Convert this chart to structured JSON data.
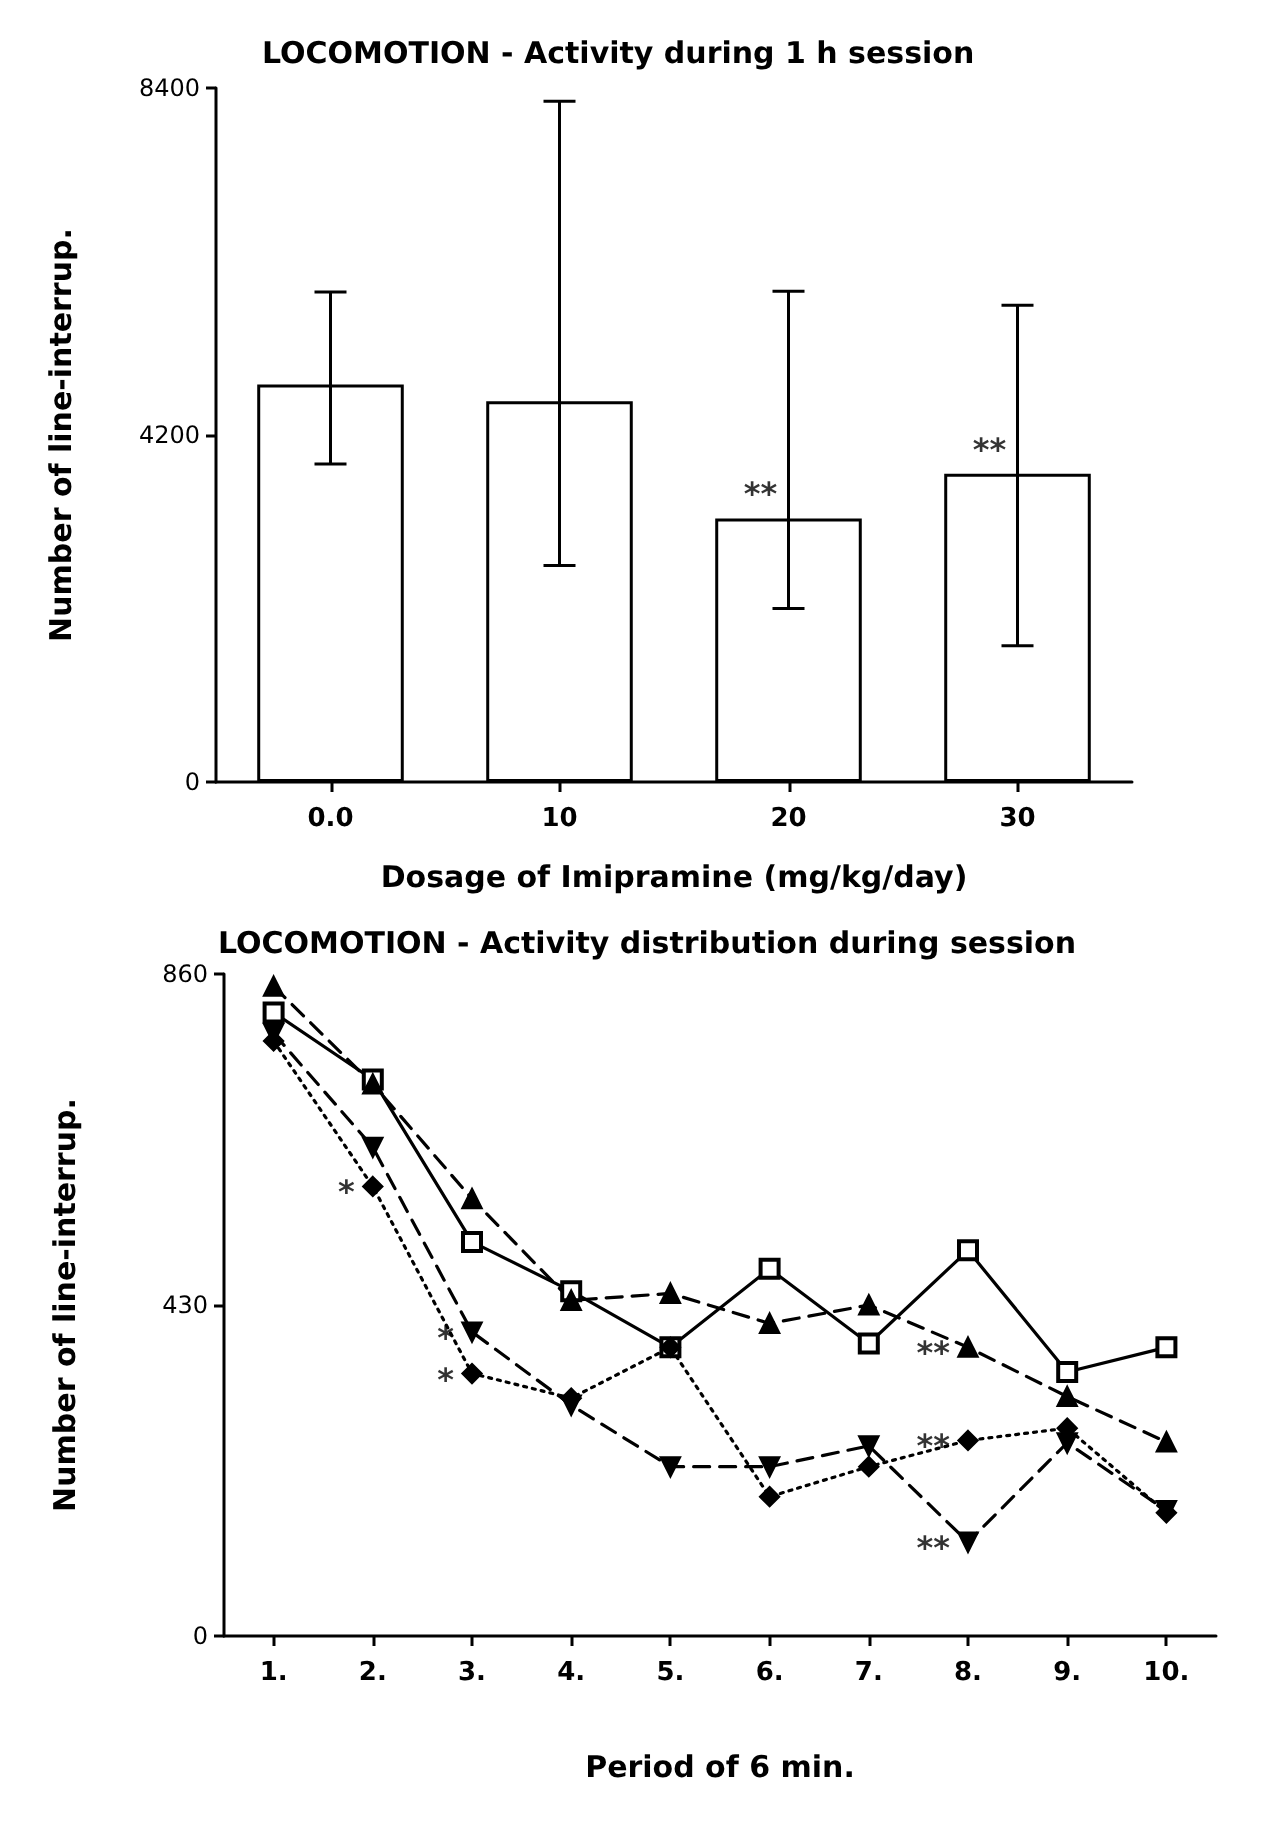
{
  "chart_data": [
    {
      "type": "bar",
      "title": "LOCOMOTION - Activity during 1 h session",
      "xlabel": "Dosage of Imipramine (mg/kg/day)",
      "ylabel": "Number of line-interrup.",
      "categories": [
        "0.0",
        "10",
        "20",
        "30"
      ],
      "values": [
        4810,
        4610,
        3190,
        3730
      ],
      "color": "#ffffff",
      "errors": [
        [
          3850,
          5930
        ],
        [
          2620,
          8240
        ],
        [
          2100,
          5940
        ],
        [
          1650,
          5770
        ]
      ],
      "ylim": [
        0,
        8400
      ],
      "yticks": [
        0,
        4200,
        8400
      ],
      "grid": false,
      "annotations": [
        {
          "text": "**",
          "x": "20",
          "y": 3190
        },
        {
          "text": "**",
          "x": "30",
          "y": 3730
        }
      ]
    },
    {
      "type": "line",
      "title": "LOCOMOTION - Activity distribution during session",
      "xlabel": "Period of 6 min.",
      "ylabel": "Number of line-interrup.",
      "categories": [
        "1.",
        "2.",
        "3.",
        "4.",
        "5.",
        "6.",
        "7.",
        "8.",
        "9.",
        "10."
      ],
      "ylim": [
        0,
        860
      ],
      "yticks": [
        0,
        430,
        860
      ],
      "grid": false,
      "series": [
        {
          "color": "#000000",
          "marker": "square",
          "line_style": "solid",
          "values": [
            810,
            723,
            512,
            448,
            375,
            477,
            380,
            501,
            343,
            375
          ]
        },
        {
          "color": "#000000",
          "marker": "triangle",
          "line_style": "dashed",
          "values": [
            844,
            717,
            568,
            436,
            445,
            406,
            430,
            375,
            311,
            252
          ]
        },
        {
          "color": "#000000",
          "marker": "triangle_down",
          "line_style": "dashed",
          "values": [
            783,
            635,
            395,
            300,
            220,
            220,
            247,
            122,
            251,
            163
          ]
        },
        {
          "color": "#000000",
          "marker": "diamond",
          "line_style": "dotted",
          "values": [
            773,
            584,
            341,
            309,
            375,
            181,
            220,
            254,
            270,
            160
          ]
        }
      ],
      "annotations": [
        {
          "text": "*",
          "x": "2.",
          "y": 584
        },
        {
          "text": "*",
          "x": "3.",
          "y": 395
        },
        {
          "text": "*",
          "x": "3.",
          "y": 341
        },
        {
          "text": "**",
          "x": "8.",
          "y": 375
        },
        {
          "text": "**",
          "x": "8.",
          "y": 254
        },
        {
          "text": "**",
          "x": "8.",
          "y": 122
        }
      ]
    }
  ]
}
